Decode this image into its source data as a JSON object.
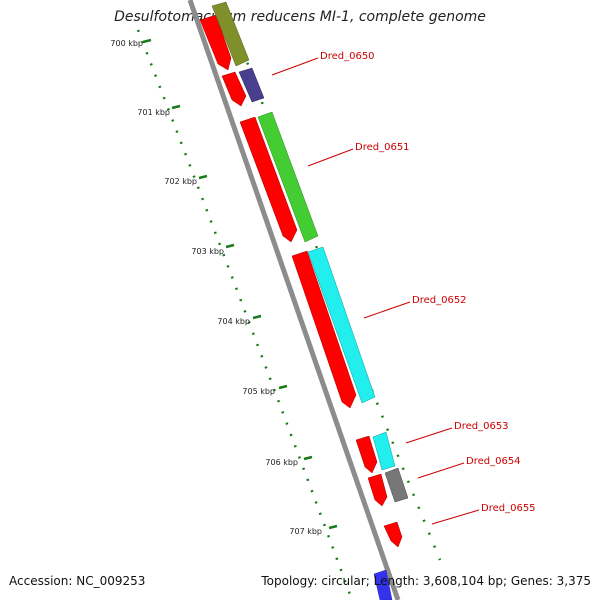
{
  "title": "Desulfotomaculum reducens MI-1, complete genome",
  "accession_text": "Accession: NC_009253",
  "summary_text": "Topology: circular; Length: 3,608,104 bp; Genes: 3,375",
  "kbp_labels": [
    "700 kbp",
    "701 kbp",
    "702 kbp",
    "703 kbp",
    "704 kbp",
    "705 kbp",
    "706 kbp",
    "707 kbp"
  ],
  "gene_labels": [
    "Dred_0650",
    "Dred_0651",
    "Dred_0652",
    "Dred_0653",
    "Dred_0654",
    "Dred_0655"
  ],
  "colors": {
    "backbone": "#8c8c8c",
    "tick": "#1a7a1a",
    "forward_strand": "#ff0000",
    "label": "#cc0000",
    "olive": "#7f8f2a",
    "navy": "#4a3f8f",
    "green": "#44cc33",
    "cyan": "#22eeee",
    "gray": "#777777",
    "blue": "#3333ee"
  }
}
